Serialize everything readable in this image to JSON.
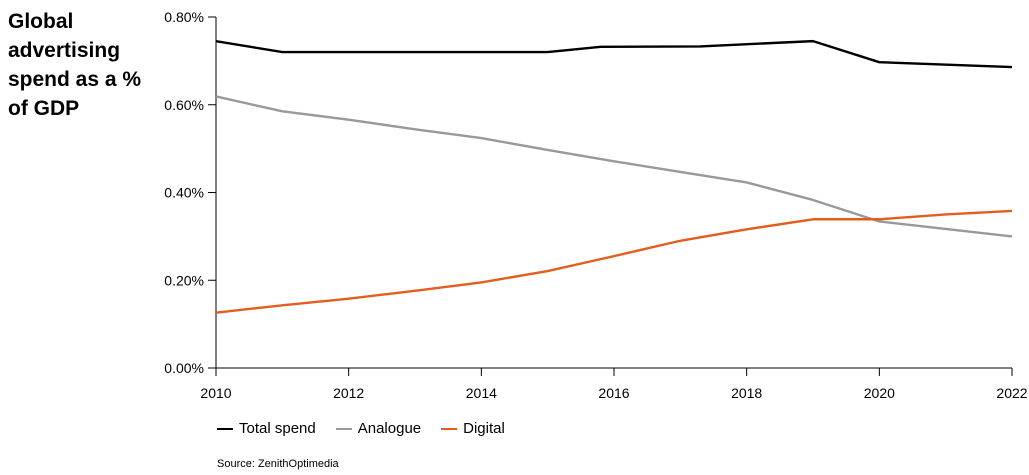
{
  "chart_data": {
    "type": "line",
    "title": "Global advertising spend as a % of GDP",
    "xlabel": "",
    "ylabel": "",
    "xlim": [
      2010,
      2022
    ],
    "ylim": [
      0,
      0.8
    ],
    "x_ticks": [
      "2010",
      "2012",
      "2014",
      "2016",
      "2018",
      "2020",
      "2022"
    ],
    "y_ticks": [
      "0.00%",
      "0.20%",
      "0.40%",
      "0.60%",
      "0.80%"
    ],
    "grid": false,
    "legend_position": "bottom-left",
    "series": [
      {
        "name": "Total spend",
        "color": "#000000",
        "x": [
          2010,
          2011,
          2012,
          2013,
          2014,
          2015,
          2015.8,
          2017.3,
          2019,
          2020,
          2022
        ],
        "y": [
          0.745,
          0.72,
          0.72,
          0.72,
          0.72,
          0.72,
          0.732,
          0.733,
          0.745,
          0.697,
          0.686
        ]
      },
      {
        "name": "Analogue",
        "color": "#999999",
        "x": [
          2010,
          2011,
          2012,
          2013,
          2014,
          2015,
          2016,
          2017,
          2018,
          2019,
          2020,
          2021,
          2022
        ],
        "y": [
          0.619,
          0.585,
          0.566,
          0.544,
          0.524,
          0.497,
          0.471,
          0.447,
          0.423,
          0.383,
          0.334,
          0.317,
          0.3
        ]
      },
      {
        "name": "Digital",
        "color": "#e35e1d",
        "x": [
          2010,
          2011,
          2012,
          2013,
          2014,
          2015,
          2016,
          2017,
          2018,
          2019,
          2020,
          2021,
          2022
        ],
        "y": [
          0.126,
          0.143,
          0.158,
          0.176,
          0.195,
          0.221,
          0.255,
          0.29,
          0.316,
          0.339,
          0.339,
          0.35,
          0.358
        ]
      }
    ]
  },
  "source": "Source: ZenithOptimedia"
}
